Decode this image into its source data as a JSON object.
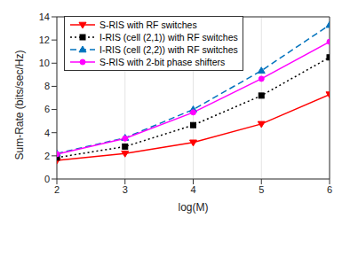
{
  "chart_data": {
    "type": "line",
    "x_label": "log(M)",
    "y_label": "Sum-Rate (bits/sec/Hz)",
    "x": [
      2,
      3,
      4,
      5,
      6
    ],
    "xlim": [
      2,
      6
    ],
    "xticks": [
      2,
      3,
      4,
      5,
      6
    ],
    "ylim": [
      0,
      14
    ],
    "yticks": [
      0,
      2,
      4,
      6,
      8,
      10,
      12,
      14
    ],
    "grid": true,
    "legend": "upper left",
    "series": [
      {
        "name": "S-RIS with RF switches",
        "color": "#ff0000",
        "marker": "triangle-down",
        "line_style": "solid",
        "values": [
          1.6,
          2.2,
          3.15,
          4.75,
          7.3
        ]
      },
      {
        "name": "I-RIS (cell (2,1)) with RF switches",
        "color": "#000000",
        "marker": "square",
        "line_style": "dotted",
        "values": [
          1.85,
          2.8,
          4.65,
          7.2,
          10.5
        ]
      },
      {
        "name": "I-RIS (cell (2,2)) with RF switches",
        "color": "#0072bd",
        "marker": "triangle-up",
        "line_style": "dashed",
        "values": [
          2.2,
          3.55,
          6.0,
          9.35,
          13.3
        ]
      },
      {
        "name": "S-RIS with 2-bit phase shifters",
        "color": "#ff00ff",
        "marker": "circle",
        "line_style": "solid",
        "values": [
          2.15,
          3.5,
          5.75,
          8.65,
          11.85
        ]
      }
    ]
  }
}
